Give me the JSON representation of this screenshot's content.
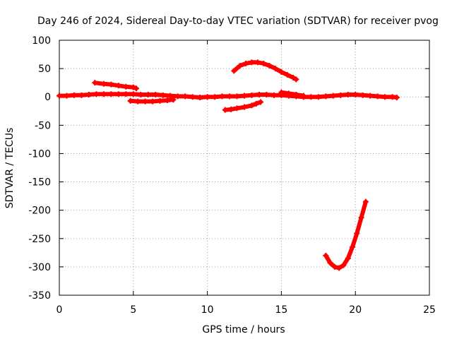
{
  "chart_data": {
    "type": "scatter",
    "title": "Day 246 of 2024, Sidereal Day-to-day VTEC variation (SDTVAR) for receiver pvog",
    "xlabel": "GPS time / hours",
    "ylabel": "SDTVAR / TECUs",
    "xlim": [
      0,
      25
    ],
    "ylim": [
      -350,
      100
    ],
    "x_ticks": [
      0,
      5,
      10,
      15,
      20,
      25
    ],
    "y_ticks": [
      100,
      50,
      0,
      -50,
      -100,
      -150,
      -200,
      -250,
      -300,
      -350
    ],
    "grid": true,
    "legend": "none",
    "marker": "plus",
    "color": "#ff0000",
    "series": [
      {
        "x": [
          0.0,
          0.5,
          1.0,
          1.5,
          2.0,
          2.5,
          3.0,
          3.5,
          4.0,
          4.5,
          5.0,
          5.5,
          6.0,
          6.5,
          7.0,
          7.5,
          8.0,
          8.5,
          9.0,
          9.5,
          10.0,
          10.5,
          11.0,
          11.5,
          12.0,
          12.5,
          13.0,
          13.5,
          14.0,
          14.5,
          15.0,
          15.5,
          16.0,
          16.5,
          17.0,
          17.5,
          18.0,
          18.5,
          19.0,
          19.5,
          20.0,
          20.5,
          21.0,
          21.5,
          22.0,
          22.5,
          22.8
        ],
        "y": [
          2,
          2,
          3,
          3,
          4,
          5,
          5,
          5,
          5,
          5,
          5,
          4,
          4,
          4,
          3,
          2,
          1,
          1,
          0,
          -1,
          0,
          0,
          1,
          1,
          1,
          2,
          3,
          4,
          4,
          3,
          3,
          2,
          1,
          0,
          0,
          0,
          1,
          2,
          3,
          4,
          4,
          3,
          2,
          1,
          0,
          0,
          -1
        ]
      },
      {
        "x": [
          2.4,
          3.0,
          3.5,
          4.0,
          4.5,
          5.0,
          5.2
        ],
        "y": [
          25,
          23,
          22,
          20,
          18,
          17,
          15
        ]
      },
      {
        "x": [
          4.8,
          5.3,
          5.8,
          6.3,
          6.8,
          7.3,
          7.7
        ],
        "y": [
          -7,
          -8,
          -8,
          -8,
          -7,
          -6,
          -5
        ]
      },
      {
        "x": [
          11.2,
          11.6,
          12.0,
          12.5,
          13.0,
          13.3,
          13.6
        ],
        "y": [
          -23,
          -22,
          -20,
          -18,
          -15,
          -12,
          -9
        ]
      },
      {
        "x": [
          11.8,
          12.2,
          12.6,
          13.0,
          13.4,
          13.8,
          14.2,
          14.6,
          15.0,
          15.4,
          15.8,
          16.0
        ],
        "y": [
          46,
          55,
          59,
          61,
          61,
          59,
          55,
          50,
          44,
          39,
          34,
          31
        ]
      },
      {
        "x": [
          15.0,
          15.5,
          16.0,
          16.5
        ],
        "y": [
          8,
          6,
          4,
          2
        ]
      },
      {
        "x": [
          18.0,
          18.3,
          18.6,
          18.9,
          19.2,
          19.5,
          19.8,
          20.1,
          20.4,
          20.7
        ],
        "y": [
          -280,
          -293,
          -300,
          -302,
          -297,
          -285,
          -265,
          -241,
          -213,
          -185
        ]
      }
    ]
  }
}
